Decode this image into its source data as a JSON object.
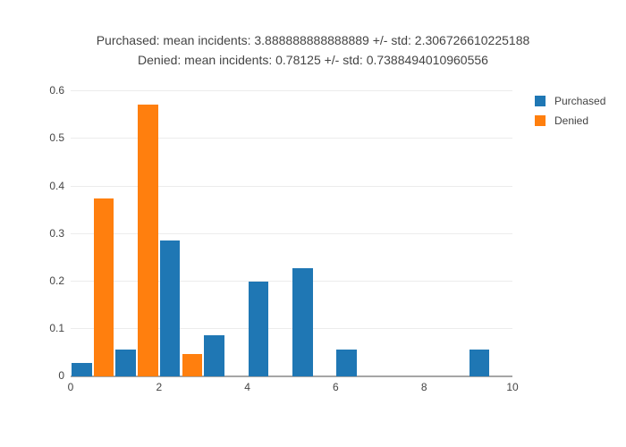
{
  "title": {
    "line1": "Purchased: mean incidents: 3.888888888888889 +/- std: 2.306726610225188",
    "line2": "Denied: mean incidents: 0.78125 +/- std: 0.7388494010960556"
  },
  "legend": {
    "items": [
      {
        "label": "Purchased",
        "color": "#1f77b4"
      },
      {
        "label": "Denied",
        "color": "#ff7f0e"
      }
    ]
  },
  "chart_data": {
    "type": "bar",
    "subtype": "grouped-histogram",
    "histnorm": "probability",
    "title": "Purchased: mean incidents: 3.888888888888889 +/- std: 2.306726610225188 / Denied: mean incidents: 0.78125 +/- std: 0.7388494010960556",
    "xlabel": "",
    "ylabel": "",
    "x_range": [
      0,
      10
    ],
    "y_range": [
      0,
      0.625
    ],
    "x_ticks": [
      "0",
      "2",
      "4",
      "6",
      "8",
      "10"
    ],
    "y_ticks": [
      "0",
      "0.1",
      "0.2",
      "0.3",
      "0.4",
      "0.5",
      "0.6"
    ],
    "bin_width": 1,
    "bar_slot_width": 0.5,
    "grid": true,
    "legend_position": "top-right-outside",
    "series": [
      {
        "name": "Purchased",
        "color": "#1f77b4",
        "slot_offset": 0,
        "points": [
          {
            "bin_start": 0,
            "value": 0.029
          },
          {
            "bin_start": 1,
            "value": 0.057
          },
          {
            "bin_start": 2,
            "value": 0.286
          },
          {
            "bin_start": 3,
            "value": 0.086
          },
          {
            "bin_start": 4,
            "value": 0.2
          },
          {
            "bin_start": 5,
            "value": 0.228
          },
          {
            "bin_start": 6,
            "value": 0.057
          },
          {
            "bin_start": 9,
            "value": 0.057
          }
        ]
      },
      {
        "name": "Denied",
        "color": "#ff7f0e",
        "slot_offset": 0.5,
        "points": [
          {
            "bin_start": 0,
            "value": 0.375
          },
          {
            "bin_start": 1,
            "value": 0.572
          },
          {
            "bin_start": 2,
            "value": 0.048
          }
        ]
      }
    ],
    "colors": {
      "grid": "#ececec",
      "axis_line": "#a6a6a6",
      "text": "#444444",
      "background": "#ffffff"
    }
  }
}
